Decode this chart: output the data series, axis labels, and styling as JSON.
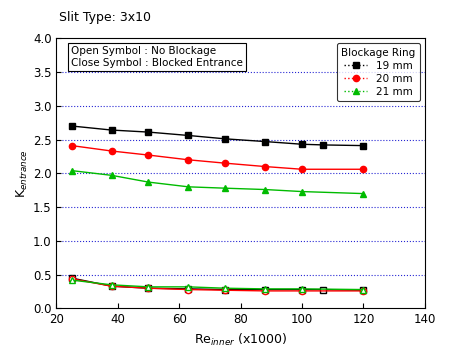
{
  "title": "Slit Type: 3x10",
  "xlabel_pre": "Re",
  "xlabel_sub": "inner",
  "xlabel_post": " (x1000)",
  "ylabel": "K$_{entrance}$",
  "xlim": [
    20,
    140
  ],
  "ylim": [
    0.0,
    4.0
  ],
  "xticks": [
    20,
    40,
    60,
    80,
    100,
    120,
    140
  ],
  "yticks": [
    0.0,
    0.5,
    1.0,
    1.5,
    2.0,
    2.5,
    3.0,
    3.5,
    4.0
  ],
  "grid_y": [
    0.5,
    1.0,
    1.5,
    2.0,
    2.5,
    3.0,
    3.5
  ],
  "blocked_19mm_x": [
    25,
    38,
    50,
    63,
    75,
    88,
    100,
    107,
    120
  ],
  "blocked_19mm_y": [
    2.7,
    2.64,
    2.61,
    2.56,
    2.51,
    2.47,
    2.43,
    2.42,
    2.41
  ],
  "blocked_20mm_x": [
    25,
    38,
    50,
    63,
    75,
    88,
    100,
    120
  ],
  "blocked_20mm_y": [
    2.41,
    2.33,
    2.27,
    2.2,
    2.15,
    2.1,
    2.06,
    2.06
  ],
  "blocked_21mm_x": [
    25,
    38,
    50,
    63,
    75,
    88,
    100,
    120
  ],
  "blocked_21mm_y": [
    2.04,
    1.97,
    1.87,
    1.8,
    1.78,
    1.76,
    1.73,
    1.7
  ],
  "open_19mm_x": [
    25,
    38,
    50,
    63,
    75,
    88,
    100,
    107,
    120
  ],
  "open_19mm_y": [
    0.45,
    0.33,
    0.3,
    0.29,
    0.28,
    0.28,
    0.28,
    0.28,
    0.27
  ],
  "open_20mm_x": [
    25,
    38,
    50,
    63,
    75,
    88,
    100,
    120
  ],
  "open_20mm_y": [
    0.44,
    0.33,
    0.3,
    0.28,
    0.27,
    0.26,
    0.26,
    0.26
  ],
  "open_21mm_x": [
    25,
    38,
    50,
    63,
    75,
    88,
    100,
    120
  ],
  "open_21mm_y": [
    0.42,
    0.35,
    0.32,
    0.32,
    0.3,
    0.29,
    0.29,
    0.28
  ],
  "color_19": "#000000",
  "color_20": "#ff0000",
  "color_21": "#00bb00",
  "grid_color": "#0000cc",
  "legend_line1": "Open Symbol : No Blockage",
  "legend_line2": "Close Symbol : Blocked Entrance",
  "legend_title_right": "Blockage Ring",
  "legend_19": "19 mm",
  "legend_20": "20 mm",
  "legend_21": "21 mm",
  "background_color": "#ffffff",
  "title_fontsize": 9,
  "axis_fontsize": 9,
  "tick_fontsize": 8.5,
  "legend_fontsize": 7.5
}
